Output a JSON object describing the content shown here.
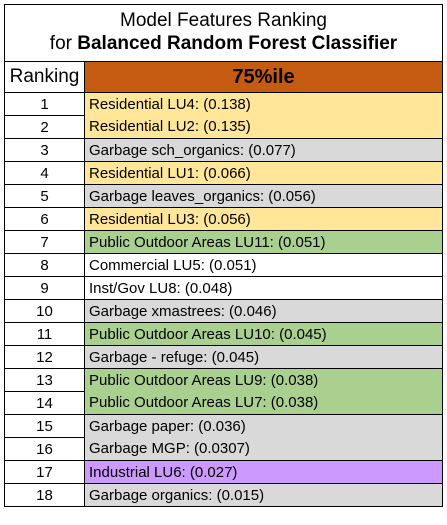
{
  "title": {
    "line1": "Model Features Ranking",
    "line2_prefix": "for ",
    "line2_bold": "Balanced Random Forest Classifier"
  },
  "header": {
    "ranking_label": "Ranking",
    "percentile_label": "75%ile",
    "percentile_color": "#c55a11"
  },
  "colors": {
    "residential": "#ffe699",
    "garbage": "#d9d9d9",
    "public_outdoor": "#a9d08e",
    "commercial": "#ffffff",
    "inst_gov": "#ffffff",
    "industrial": "#cc99ff"
  },
  "rows": [
    {
      "rank": "1",
      "feature": "Residential LU4: (0.138)",
      "category": "residential",
      "group": "first"
    },
    {
      "rank": "2",
      "feature": "Residential  LU2: (0.135)",
      "category": "residential",
      "group": "last"
    },
    {
      "rank": "3",
      "feature": "Garbage sch_organics: (0.077)",
      "category": "garbage",
      "group": "none"
    },
    {
      "rank": "4",
      "feature": "Residential  LU1: (0.066)",
      "category": "residential",
      "group": "none"
    },
    {
      "rank": "5",
      "feature": "Garbage leaves_organics: (0.056)",
      "category": "garbage",
      "group": "none"
    },
    {
      "rank": "6",
      "feature": "Residential LU3: (0.056)",
      "category": "residential",
      "group": "none"
    },
    {
      "rank": "7",
      "feature": "Public Outdoor Areas LU11: (0.051)",
      "category": "public_outdoor",
      "group": "none"
    },
    {
      "rank": "8",
      "feature": "Commercial LU5: (0.051)",
      "category": "commercial",
      "group": "none"
    },
    {
      "rank": "9",
      "feature": "Inst/Gov LU8: (0.048)",
      "category": "inst_gov",
      "group": "none"
    },
    {
      "rank": "10",
      "feature": "Garbage xmastrees: (0.046)",
      "category": "garbage",
      "group": "none"
    },
    {
      "rank": "11",
      "feature": "Public Outdoor Areas LU10: (0.045)",
      "category": "public_outdoor",
      "group": "none"
    },
    {
      "rank": "12",
      "feature": "Garbage - refuge: (0.045)",
      "category": "garbage",
      "group": "none"
    },
    {
      "rank": "13",
      "feature": "Public Outdoor Areas LU9: (0.038)",
      "category": "public_outdoor",
      "group": "first"
    },
    {
      "rank": "14",
      "feature": "Public Outdoor Areas LU7: (0.038)",
      "category": "public_outdoor",
      "group": "last"
    },
    {
      "rank": "15",
      "feature": "Garbage paper: (0.036)",
      "category": "garbage",
      "group": "first"
    },
    {
      "rank": "16",
      "feature": "Garbage MGP: (0.0307)",
      "category": "garbage",
      "group": "last"
    },
    {
      "rank": "17",
      "feature": "Industrial LU6: (0.027)",
      "category": "industrial",
      "group": "none"
    },
    {
      "rank": "18",
      "feature": "Garbage organics: (0.015)",
      "category": "garbage",
      "group": "none"
    }
  ]
}
